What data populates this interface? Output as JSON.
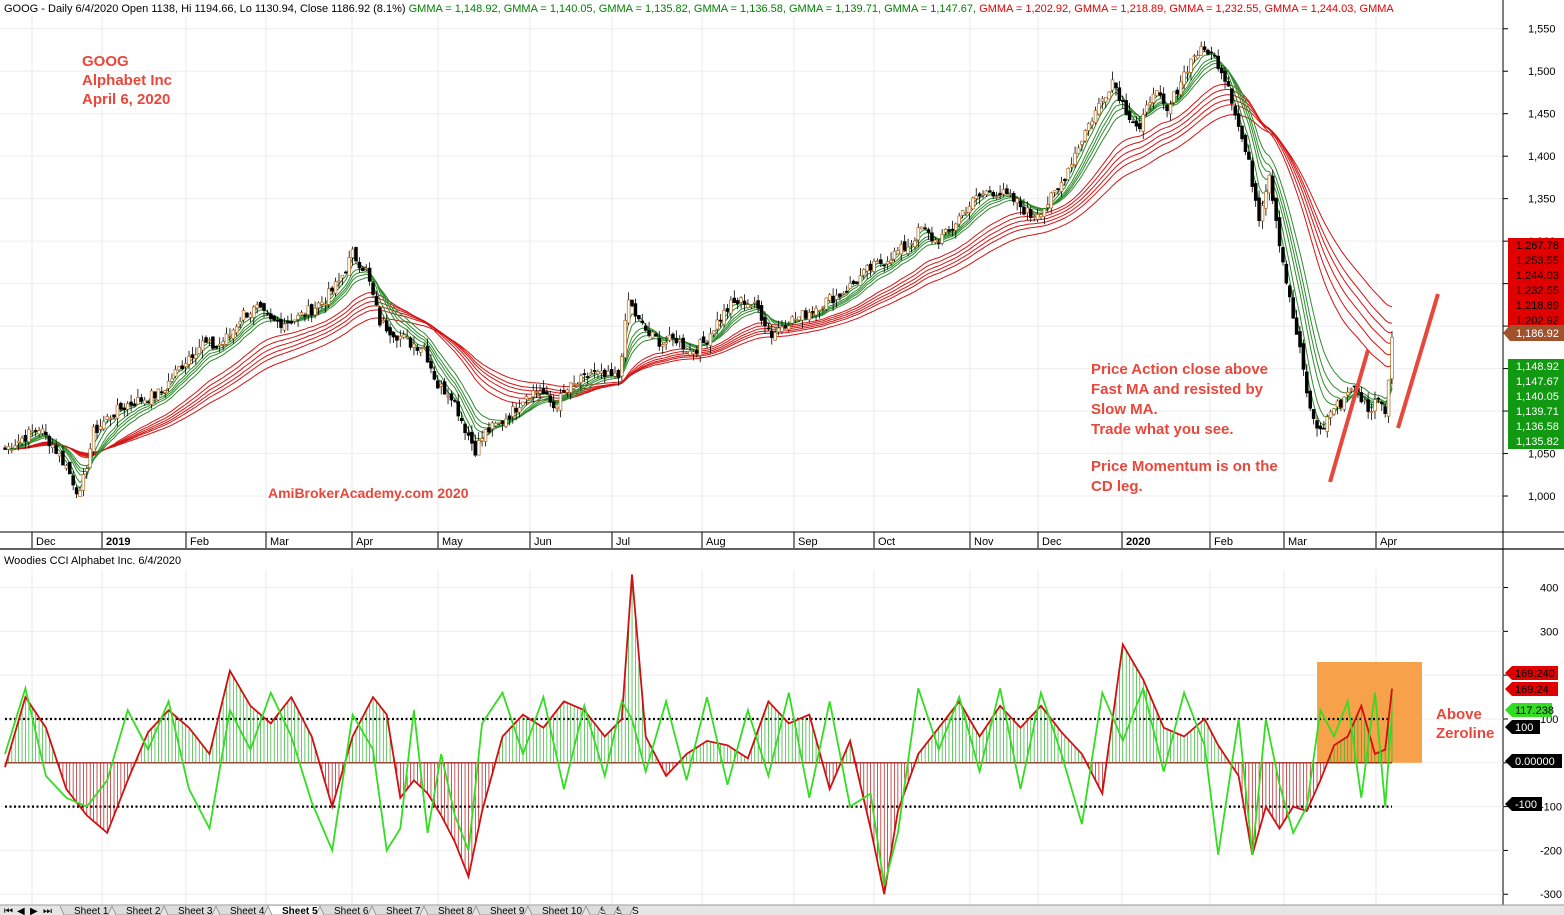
{
  "header": {
    "price_title": "GOOG - Daily 6/4/2020 Open 1138, Hi 1194.66, Lo 1130.94, Close 1186.92 (8.1%)",
    "gmma_label": "GMMA",
    "gmma_values": [
      "1,148.92",
      "1,140.05",
      "1,135.82",
      "1,136.58",
      "1,139.71",
      "1,147.67",
      "1,202.92",
      "1,218.89",
      "1,232.55",
      "1,244.03"
    ],
    "gmma_colors": [
      "#008000",
      "#008000",
      "#008000",
      "#008000",
      "#008000",
      "#008000",
      "#e00000",
      "#e00000",
      "#e00000",
      "#e00000"
    ],
    "gmma_trailing": "GMMA",
    "cci_title": "Woodies CCI  Alphabet Inc. 6/4/2020"
  },
  "annotations": {
    "symbol": "GOOG",
    "company": "Alphabet Inc",
    "date": "April 6, 2020",
    "watermark": "AmiBrokerAcademy.com    2020",
    "note_lines": [
      "Price Action close above",
      "Fast MA and resisted by",
      "Slow MA.",
      "Trade what you see."
    ],
    "momentum_lines": [
      "Price Momentum is on the",
      "CD leg."
    ],
    "cci_note": [
      "Above",
      "Zeroline"
    ]
  },
  "price_tags": {
    "slow": [
      "1,267.78",
      "1,253.55",
      "1,244.03",
      "1,232.55",
      "1,218.89",
      "1,202.92"
    ],
    "close": "1,186.92",
    "fast": [
      "1,148.92",
      "1,147.67",
      "1,140.05",
      "1,139.71",
      "1,136.58",
      "1,135.82"
    ]
  },
  "cci_tags": {
    "cci_red": "169.240",
    "cci_red2": "169.24",
    "turbo": "117.238",
    "hundred": "100",
    "zero": "0.00000",
    "minus_hundred": "-100"
  },
  "sheet_tabs": [
    "Sheet 1",
    "Sheet 2",
    "Sheet 3",
    "Sheet 4",
    "Sheet 5",
    "Sheet 6",
    "Sheet 7",
    "Sheet 8",
    "Sheet 9",
    "Sheet 10",
    "S",
    "S",
    "S"
  ],
  "active_sheet": "Sheet 5",
  "colors": {
    "fast_ma": "#2e8b2e",
    "slow_ma": "#d41414",
    "cci": "#d01010",
    "turbo": "#33dd22",
    "annotation": "#e8473b",
    "highlight": "#f7a24a"
  },
  "chart_data": [
    {
      "type": "candlestick",
      "title": "GOOG - Daily 6/4/2020 Open 1138, Hi 1194.66, Lo 1130.94, Close 1186.92 (8.1%)",
      "x_tick_labels": [
        "Dec",
        "2019",
        "Feb",
        "Mar",
        "Apr",
        "May",
        "Jun",
        "Jul",
        "Aug",
        "Sep",
        "Oct",
        "Nov",
        "Dec",
        "2020",
        "Feb",
        "Mar",
        "Apr"
      ],
      "y_ticks": [
        1000,
        1050,
        1100,
        1150,
        1200,
        1250,
        1300,
        1350,
        1400,
        1450,
        1500,
        1550
      ],
      "y_tick_labels": [
        "1,000",
        "1,050",
        "1,100",
        "1,150",
        "1,200",
        "1,250",
        "1,300",
        "1,350",
        "1,400",
        "1,450",
        "1,500",
        "1,550"
      ],
      "ylim": [
        960,
        1565
      ],
      "close_path": [
        [
          0,
          1055
        ],
        [
          5,
          1068
        ],
        [
          10,
          1080
        ],
        [
          14,
          1060
        ],
        [
          18,
          1035
        ],
        [
          22,
          1000
        ],
        [
          26,
          1075
        ],
        [
          31,
          1095
        ],
        [
          36,
          1108
        ],
        [
          41,
          1115
        ],
        [
          46,
          1122
        ],
        [
          50,
          1145
        ],
        [
          54,
          1165
        ],
        [
          58,
          1180
        ],
        [
          62,
          1175
        ],
        [
          66,
          1190
        ],
        [
          70,
          1215
        ],
        [
          74,
          1220
        ],
        [
          78,
          1205
        ],
        [
          82,
          1205
        ],
        [
          86,
          1210
        ],
        [
          90,
          1220
        ],
        [
          94,
          1232
        ],
        [
          98,
          1252
        ],
        [
          102,
          1285
        ],
        [
          106,
          1265
        ],
        [
          110,
          1205
        ],
        [
          115,
          1190
        ],
        [
          119,
          1180
        ],
        [
          123,
          1175
        ],
        [
          127,
          1130
        ],
        [
          131,
          1120
        ],
        [
          135,
          1080
        ],
        [
          138,
          1055
        ],
        [
          141,
          1075
        ],
        [
          145,
          1085
        ],
        [
          149,
          1100
        ],
        [
          153,
          1120
        ],
        [
          157,
          1125
        ],
        [
          161,
          1105
        ],
        [
          165,
          1125
        ],
        [
          169,
          1135
        ],
        [
          172,
          1145
        ],
        [
          176,
          1140
        ],
        [
          180,
          1140
        ],
        [
          183,
          1230
        ],
        [
          186,
          1205
        ],
        [
          189,
          1190
        ],
        [
          193,
          1180
        ],
        [
          197,
          1185
        ],
        [
          201,
          1170
        ],
        [
          205,
          1180
        ],
        [
          209,
          1205
        ],
        [
          213,
          1225
        ],
        [
          217,
          1230
        ],
        [
          221,
          1220
        ],
        [
          225,
          1190
        ],
        [
          229,
          1205
        ],
        [
          233,
          1210
        ],
        [
          237,
          1220
        ],
        [
          241,
          1230
        ],
        [
          245,
          1238
        ],
        [
          249,
          1250
        ],
        [
          253,
          1265
        ],
        [
          257,
          1275
        ],
        [
          261,
          1285
        ],
        [
          265,
          1295
        ],
        [
          269,
          1315
        ],
        [
          273,
          1300
        ],
        [
          277,
          1310
        ],
        [
          281,
          1335
        ],
        [
          285,
          1350
        ],
        [
          289,
          1360
        ],
        [
          293,
          1355
        ],
        [
          297,
          1345
        ],
        [
          301,
          1330
        ],
        [
          305,
          1340
        ],
        [
          309,
          1360
        ],
        [
          313,
          1395
        ],
        [
          317,
          1430
        ],
        [
          321,
          1460
        ],
        [
          325,
          1490
        ],
        [
          329,
          1455
        ],
        [
          333,
          1430
        ],
        [
          337,
          1480
        ],
        [
          341,
          1450
        ],
        [
          345,
          1490
        ],
        [
          349,
          1520
        ],
        [
          353,
          1525
        ],
        [
          356,
          1510
        ],
        [
          359,
          1485
        ],
        [
          362,
          1435
        ],
        [
          365,
          1390
        ],
        [
          368,
          1330
        ],
        [
          371,
          1380
        ],
        [
          374,
          1300
        ],
        [
          377,
          1230
        ],
        [
          380,
          1170
        ],
        [
          383,
          1100
        ],
        [
          386,
          1075
        ],
        [
          389,
          1100
        ],
        [
          392,
          1110
        ],
        [
          395,
          1130
        ],
        [
          398,
          1115
        ],
        [
          401,
          1100
        ],
        [
          403,
          1120
        ],
        [
          405,
          1100
        ],
        [
          407,
          1186.92
        ]
      ],
      "gmma_fast_last": [
        1148.92,
        1147.67,
        1140.05,
        1139.71,
        1136.58,
        1135.82
      ],
      "gmma_slow_last": [
        1267.78,
        1253.55,
        1244.03,
        1232.55,
        1218.89,
        1202.92
      ],
      "last_close": 1186.92
    },
    {
      "type": "line",
      "title": "Woodies CCI  Alphabet Inc. 6/4/2020",
      "y_ticks": [
        -300,
        -200,
        -100,
        0,
        100,
        200,
        300,
        400
      ],
      "y_tick_labels": [
        "-300",
        "-200",
        "-100",
        "0",
        "100",
        "200",
        "300",
        "400"
      ],
      "ylim": [
        -320,
        440
      ],
      "reference_lines": [
        100,
        0,
        -100
      ],
      "cci_path": [
        [
          0,
          -10
        ],
        [
          6,
          150
        ],
        [
          12,
          80
        ],
        [
          18,
          -60
        ],
        [
          24,
          -120
        ],
        [
          30,
          -160
        ],
        [
          36,
          -40
        ],
        [
          42,
          70
        ],
        [
          48,
          120
        ],
        [
          54,
          80
        ],
        [
          60,
          20
        ],
        [
          66,
          210
        ],
        [
          72,
          130
        ],
        [
          78,
          90
        ],
        [
          84,
          150
        ],
        [
          90,
          60
        ],
        [
          96,
          -100
        ],
        [
          102,
          60
        ],
        [
          108,
          150
        ],
        [
          112,
          110
        ],
        [
          116,
          -80
        ],
        [
          120,
          -40
        ],
        [
          124,
          -70
        ],
        [
          128,
          -120
        ],
        [
          132,
          -180
        ],
        [
          136,
          -260
        ],
        [
          140,
          -110
        ],
        [
          146,
          60
        ],
        [
          152,
          110
        ],
        [
          158,
          80
        ],
        [
          164,
          140
        ],
        [
          170,
          120
        ],
        [
          176,
          60
        ],
        [
          181,
          100
        ],
        [
          184,
          430
        ],
        [
          188,
          60
        ],
        [
          194,
          -30
        ],
        [
          200,
          20
        ],
        [
          206,
          50
        ],
        [
          212,
          40
        ],
        [
          218,
          10
        ],
        [
          224,
          140
        ],
        [
          230,
          90
        ],
        [
          236,
          110
        ],
        [
          242,
          -60
        ],
        [
          248,
          50
        ],
        [
          254,
          -150
        ],
        [
          258,
          -300
        ],
        [
          262,
          -110
        ],
        [
          268,
          20
        ],
        [
          274,
          80
        ],
        [
          280,
          140
        ],
        [
          286,
          60
        ],
        [
          292,
          130
        ],
        [
          298,
          80
        ],
        [
          304,
          130
        ],
        [
          310,
          70
        ],
        [
          316,
          20
        ],
        [
          322,
          -70
        ],
        [
          328,
          270
        ],
        [
          334,
          190
        ],
        [
          340,
          80
        ],
        [
          346,
          60
        ],
        [
          352,
          100
        ],
        [
          356,
          40
        ],
        [
          362,
          -30
        ],
        [
          366,
          -210
        ],
        [
          370,
          -100
        ],
        [
          374,
          -150
        ],
        [
          378,
          -100
        ],
        [
          382,
          -110
        ],
        [
          386,
          -40
        ],
        [
          390,
          40
        ],
        [
          394,
          60
        ],
        [
          398,
          130
        ],
        [
          402,
          20
        ],
        [
          405,
          30
        ],
        [
          407,
          169.24
        ]
      ],
      "turbo_path": [
        [
          0,
          20
        ],
        [
          6,
          170
        ],
        [
          12,
          -30
        ],
        [
          18,
          -80
        ],
        [
          24,
          -100
        ],
        [
          30,
          -40
        ],
        [
          36,
          120
        ],
        [
          42,
          30
        ],
        [
          48,
          140
        ],
        [
          54,
          -60
        ],
        [
          60,
          -150
        ],
        [
          66,
          120
        ],
        [
          72,
          30
        ],
        [
          78,
          160
        ],
        [
          84,
          60
        ],
        [
          90,
          -90
        ],
        [
          96,
          -200
        ],
        [
          102,
          110
        ],
        [
          108,
          30
        ],
        [
          112,
          -200
        ],
        [
          116,
          -150
        ],
        [
          120,
          120
        ],
        [
          124,
          -160
        ],
        [
          128,
          20
        ],
        [
          132,
          -120
        ],
        [
          136,
          -200
        ],
        [
          140,
          90
        ],
        [
          146,
          160
        ],
        [
          152,
          20
        ],
        [
          158,
          150
        ],
        [
          164,
          -60
        ],
        [
          170,
          130
        ],
        [
          176,
          -30
        ],
        [
          181,
          140
        ],
        [
          184,
          100
        ],
        [
          188,
          -20
        ],
        [
          194,
          140
        ],
        [
          200,
          -40
        ],
        [
          206,
          150
        ],
        [
          212,
          -50
        ],
        [
          218,
          120
        ],
        [
          224,
          -30
        ],
        [
          230,
          160
        ],
        [
          236,
          -80
        ],
        [
          242,
          140
        ],
        [
          248,
          -100
        ],
        [
          254,
          -70
        ],
        [
          258,
          -280
        ],
        [
          262,
          -160
        ],
        [
          268,
          170
        ],
        [
          274,
          30
        ],
        [
          280,
          150
        ],
        [
          286,
          -20
        ],
        [
          292,
          170
        ],
        [
          298,
          -60
        ],
        [
          304,
          160
        ],
        [
          310,
          20
        ],
        [
          316,
          -140
        ],
        [
          322,
          160
        ],
        [
          328,
          50
        ],
        [
          334,
          170
        ],
        [
          340,
          -20
        ],
        [
          346,
          160
        ],
        [
          352,
          40
        ],
        [
          356,
          -210
        ],
        [
          362,
          100
        ],
        [
          366,
          -210
        ],
        [
          370,
          100
        ],
        [
          374,
          -50
        ],
        [
          378,
          -160
        ],
        [
          382,
          -100
        ],
        [
          386,
          120
        ],
        [
          390,
          60
        ],
        [
          394,
          140
        ],
        [
          398,
          -80
        ],
        [
          402,
          160
        ],
        [
          405,
          -100
        ],
        [
          407,
          117.238
        ]
      ],
      "highlight_box": {
        "x": [
          385,
          407
        ],
        "y": [
          0,
          230
        ]
      },
      "last_cci": 169.24,
      "last_turbo": 117.238
    }
  ]
}
